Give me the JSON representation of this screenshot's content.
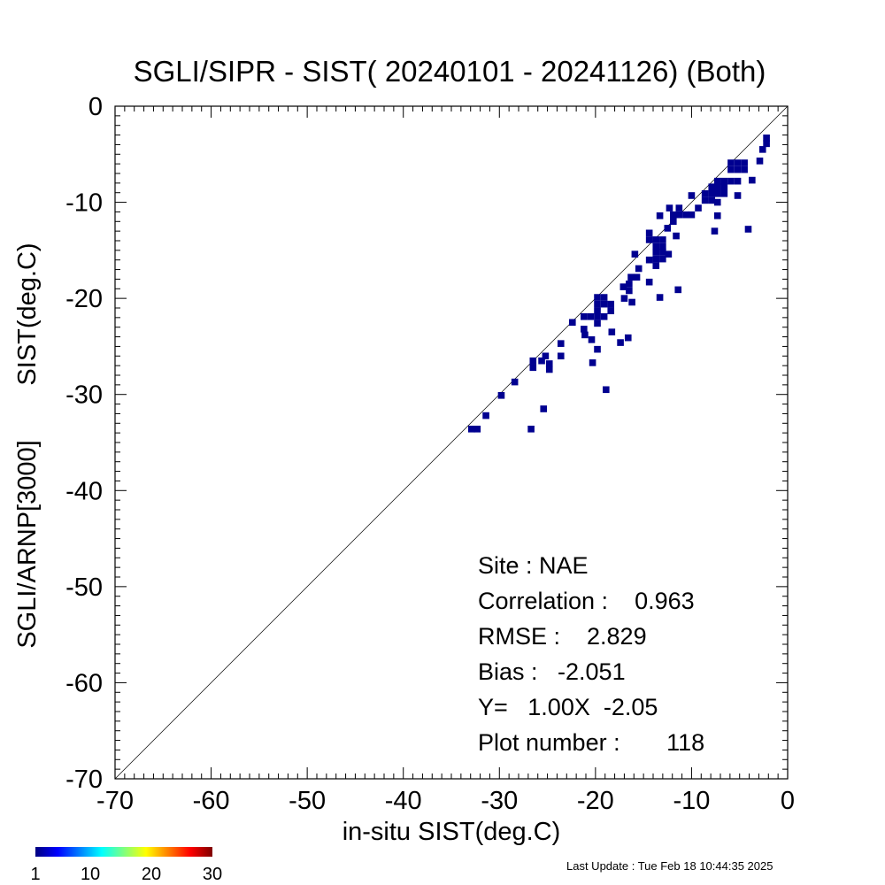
{
  "chart_data": {
    "type": "scatter",
    "title": "SGLI/SIPR - SIST( 20240101 - 20241126) (Both)",
    "xlabel": "in-situ SIST(deg.C)",
    "ylabel_top": "SIST(deg.C)",
    "ylabel_bottom": "SGLI/ARNP[3000]",
    "xlim": [
      -70,
      0
    ],
    "ylim": [
      -70,
      0
    ],
    "xticks": [
      "-70",
      "-60",
      "-50",
      "-40",
      "-30",
      "-20",
      "-10",
      "0"
    ],
    "yticks": [
      "0",
      "-10",
      "-20",
      "-30",
      "-40",
      "-50",
      "-60",
      "-70"
    ],
    "reference_line": "1:1",
    "grid": false,
    "cell_size": 0.7,
    "color_scale": {
      "min": 1,
      "max": 30,
      "tick_labels": [
        "1",
        "10",
        "20",
        "30"
      ],
      "stops": [
        "#00007f",
        "#0000ff",
        "#00ffff",
        "#7fff7f",
        "#ffff00",
        "#ff0000",
        "#7f0000"
      ]
    },
    "point_color": "#000090",
    "points": [
      [
        -2.2,
        -3.3
      ],
      [
        -2.2,
        -3.9
      ],
      [
        -2.6,
        -4.5
      ],
      [
        -2.9,
        -5.7
      ],
      [
        -4.5,
        -5.9
      ],
      [
        -4.5,
        -6.6
      ],
      [
        -5.2,
        -5.9
      ],
      [
        -5.2,
        -6.6
      ],
      [
        -5.9,
        -5.9
      ],
      [
        -5.9,
        -6.6
      ],
      [
        -3.7,
        -7.7
      ],
      [
        -5.2,
        -7.8
      ],
      [
        -5.9,
        -7.8
      ],
      [
        -6.6,
        -7.8
      ],
      [
        -7.3,
        -7.8
      ],
      [
        -6.6,
        -8.4
      ],
      [
        -7.3,
        -8.4
      ],
      [
        -7.9,
        -8.4
      ],
      [
        -6.6,
        -9.1
      ],
      [
        -7.3,
        -9.1
      ],
      [
        -7.9,
        -9.1
      ],
      [
        -8.6,
        -9.1
      ],
      [
        -7.9,
        -9.8
      ],
      [
        -8.6,
        -9.8
      ],
      [
        -7.3,
        -10.0
      ],
      [
        -5.2,
        -9.3
      ],
      [
        -4.1,
        -12.8
      ],
      [
        -7.3,
        -11.4
      ],
      [
        -7.6,
        -13.0
      ],
      [
        -10.0,
        -9.3
      ],
      [
        -9.3,
        -10.6
      ],
      [
        -10.0,
        -11.3
      ],
      [
        -10.6,
        -11.3
      ],
      [
        -11.3,
        -11.3
      ],
      [
        -11.9,
        -11.3
      ],
      [
        -12.3,
        -10.6
      ],
      [
        -11.3,
        -10.6
      ],
      [
        -11.9,
        -12.0
      ],
      [
        -12.5,
        -12.7
      ],
      [
        -11.6,
        -13.5
      ],
      [
        -13.3,
        -11.4
      ],
      [
        -14.4,
        -13.2
      ],
      [
        -14.4,
        -13.9
      ],
      [
        -13.7,
        -13.9
      ],
      [
        -13.0,
        -13.9
      ],
      [
        -13.7,
        -14.6
      ],
      [
        -13.0,
        -14.6
      ],
      [
        -13.7,
        -15.2
      ],
      [
        -13.0,
        -15.2
      ],
      [
        -13.7,
        -15.9
      ],
      [
        -13.0,
        -15.9
      ],
      [
        -12.4,
        -15.4
      ],
      [
        -13.7,
        -16.6
      ],
      [
        -14.4,
        -16.0
      ],
      [
        -15.9,
        -15.4
      ],
      [
        -15.5,
        -16.9
      ],
      [
        -16.3,
        -17.8
      ],
      [
        -15.7,
        -17.8
      ],
      [
        -16.5,
        -18.5
      ],
      [
        -16.5,
        -19.2
      ],
      [
        -17.1,
        -18.8
      ],
      [
        -14.4,
        -18.3
      ],
      [
        -11.4,
        -19.1
      ],
      [
        -13.3,
        -19.9
      ],
      [
        -16.2,
        -20.4
      ],
      [
        -17.0,
        -20.0
      ],
      [
        -19.8,
        -19.9
      ],
      [
        -19.1,
        -19.9
      ],
      [
        -19.8,
        -20.6
      ],
      [
        -19.1,
        -20.6
      ],
      [
        -18.4,
        -20.6
      ],
      [
        -19.8,
        -21.3
      ],
      [
        -18.4,
        -21.3
      ],
      [
        -21.2,
        -21.9
      ],
      [
        -20.5,
        -21.9
      ],
      [
        -19.8,
        -21.9
      ],
      [
        -19.1,
        -21.9
      ],
      [
        -19.8,
        -22.6
      ],
      [
        -22.4,
        -22.5
      ],
      [
        -21.2,
        -23.2
      ],
      [
        -21.1,
        -23.8
      ],
      [
        -20.4,
        -24.3
      ],
      [
        -18.3,
        -23.5
      ],
      [
        -16.6,
        -24.1
      ],
      [
        -17.4,
        -24.6
      ],
      [
        -23.6,
        -24.7
      ],
      [
        -19.8,
        -25.3
      ],
      [
        -23.6,
        -26.0
      ],
      [
        -20.3,
        -26.7
      ],
      [
        -25.2,
        -26.0
      ],
      [
        -26.5,
        -26.5
      ],
      [
        -25.6,
        -26.5
      ],
      [
        -24.8,
        -26.8
      ],
      [
        -26.5,
        -27.2
      ],
      [
        -24.8,
        -27.4
      ],
      [
        -18.9,
        -29.5
      ],
      [
        -28.4,
        -28.7
      ],
      [
        -29.8,
        -30.1
      ],
      [
        -25.4,
        -31.5
      ],
      [
        -31.4,
        -32.2
      ],
      [
        -32.9,
        -33.6
      ],
      [
        -32.3,
        -33.6
      ],
      [
        -26.7,
        -33.6
      ]
    ],
    "stats": {
      "site": "Site : NAE",
      "correlation": "Correlation :    0.963",
      "rmse": "RMSE :    2.829",
      "bias": "Bias :   -2.051",
      "fit": "Y=   1.00X  -2.05",
      "plot_number": "Plot number :       118"
    }
  },
  "footer": {
    "last_update": "Last Update : Tue Feb 18 10:44:35 2025"
  }
}
